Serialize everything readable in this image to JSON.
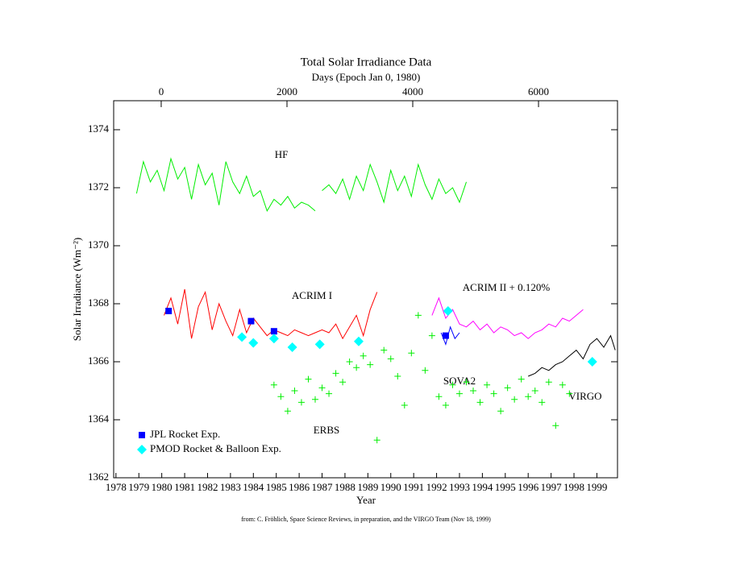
{
  "chart_data": {
    "type": "line",
    "title": "Total Solar Irradiance Data",
    "x2_label": "Days (Epoch Jan 0, 1980)",
    "x_label": "Year",
    "y_label": "Solar Irradiance (Wm⁻²)",
    "footnote": "from: C. Fröhlich, Space Science Reviews, in preparation, and the VIRGO Team (Nov 18, 1999)",
    "xlim": [
      1977.9,
      1999.9
    ],
    "xticks": [
      1978,
      1979,
      1980,
      1981,
      1982,
      1983,
      1984,
      1985,
      1986,
      1987,
      1988,
      1989,
      1990,
      1991,
      1992,
      1993,
      1994,
      1995,
      1996,
      1997,
      1998,
      1999
    ],
    "x2lim": [
      -756,
      7256
    ],
    "x2ticks": [
      0,
      2000,
      4000,
      6000
    ],
    "ylim": [
      1362,
      1375
    ],
    "yticks": [
      1362,
      1364,
      1366,
      1368,
      1370,
      1372,
      1374
    ],
    "series": [
      {
        "name": "HF",
        "color": "#00ee00",
        "style": "line",
        "x": [
          1978.9,
          1979.2,
          1979.5,
          1979.8,
          1980.1,
          1980.4,
          1980.7,
          1981.0,
          1981.3,
          1981.6,
          1981.9,
          1982.2,
          1982.5,
          1982.8,
          1983.1,
          1983.4,
          1983.7,
          1984.0,
          1984.3,
          1984.6,
          1984.9,
          1985.2,
          1985.5,
          1985.8,
          1986.1,
          1986.4,
          1986.7,
          1986.9,
          1987.0,
          1987.3,
          1987.6,
          1987.9,
          1988.2,
          1988.5,
          1988.8,
          1989.1,
          1989.4,
          1989.7,
          1990.0,
          1990.3,
          1990.6,
          1990.9,
          1991.2,
          1991.5,
          1991.8,
          1992.1,
          1992.4,
          1992.7,
          1993.0,
          1993.3
        ],
        "values": [
          1371.8,
          1372.9,
          1372.2,
          1372.6,
          1371.9,
          1373.0,
          1372.3,
          1372.7,
          1371.6,
          1372.8,
          1372.1,
          1372.5,
          1371.4,
          1372.9,
          1372.2,
          1371.8,
          1372.4,
          1371.7,
          1371.9,
          1371.2,
          1371.6,
          1371.4,
          1371.7,
          1371.3,
          1371.5,
          1371.4,
          1371.2,
          null,
          1371.9,
          1372.1,
          1371.8,
          1372.3,
          1371.6,
          1372.4,
          1371.9,
          1372.8,
          1372.2,
          1371.5,
          1372.6,
          1371.9,
          1372.4,
          1371.7,
          1372.8,
          1372.1,
          1371.6,
          1372.3,
          1371.8,
          1372.0,
          1371.5,
          1372.2
        ]
      },
      {
        "name": "ACRIM I",
        "color": "#ff0000",
        "style": "line",
        "x": [
          1980.1,
          1980.4,
          1980.7,
          1981.0,
          1981.3,
          1981.6,
          1981.9,
          1982.2,
          1982.5,
          1982.8,
          1983.1,
          1983.4,
          1983.7,
          1984.0,
          1984.3,
          1984.6,
          1984.9,
          1985.2,
          1985.5,
          1985.8,
          1986.1,
          1986.4,
          1986.7,
          1987.0,
          1987.3,
          1987.6,
          1987.9,
          1988.2,
          1988.5,
          1988.8,
          1989.1,
          1989.4
        ],
        "values": [
          1367.6,
          1368.2,
          1367.3,
          1368.5,
          1366.8,
          1367.9,
          1368.4,
          1367.1,
          1368.0,
          1367.4,
          1366.9,
          1367.8,
          1367.0,
          1367.5,
          1367.2,
          1366.9,
          1367.1,
          1367.0,
          1366.9,
          1367.1,
          1367.0,
          1366.9,
          1367.0,
          1367.1,
          1367.0,
          1367.3,
          1366.8,
          1367.2,
          1367.6,
          1366.9,
          1367.8,
          1368.4
        ]
      },
      {
        "name": "ACRIM II + 0.120%",
        "color": "#ff00ff",
        "style": "line",
        "x": [
          1991.8,
          1992.1,
          1992.4,
          1992.7,
          1993.0,
          1993.3,
          1993.6,
          1993.9,
          1994.2,
          1994.5,
          1994.8,
          1995.1,
          1995.4,
          1995.7,
          1996.0,
          1996.3,
          1996.6,
          1996.9,
          1997.2,
          1997.5,
          1997.8,
          1998.1,
          1998.4
        ],
        "values": [
          1367.6,
          1368.2,
          1367.5,
          1367.8,
          1367.3,
          1367.2,
          1367.4,
          1367.1,
          1367.3,
          1367.0,
          1367.2,
          1367.1,
          1366.9,
          1367.0,
          1366.8,
          1367.0,
          1367.1,
          1367.3,
          1367.2,
          1367.5,
          1367.4,
          1367.6,
          1367.8
        ]
      },
      {
        "name": "SOVA2",
        "color": "#0000ff",
        "style": "line",
        "x": [
          1992.2,
          1992.4,
          1992.6,
          1992.8,
          1993.0
        ],
        "values": [
          1367.0,
          1366.6,
          1367.2,
          1366.8,
          1367.0
        ]
      },
      {
        "name": "VIRGO",
        "color": "#000000",
        "style": "line",
        "x": [
          1996.0,
          1996.3,
          1996.6,
          1996.9,
          1997.2,
          1997.5,
          1997.8,
          1998.1,
          1998.4,
          1998.7,
          1999.0,
          1999.3,
          1999.6,
          1999.8
        ],
        "values": [
          1365.5,
          1365.6,
          1365.8,
          1365.7,
          1365.9,
          1366.0,
          1366.2,
          1366.4,
          1366.1,
          1366.6,
          1366.8,
          1366.5,
          1366.9,
          1366.4
        ]
      },
      {
        "name": "ERBS",
        "color": "#00ee00",
        "style": "cross",
        "x": [
          1984.9,
          1985.2,
          1985.5,
          1985.8,
          1986.1,
          1986.4,
          1986.7,
          1987.0,
          1987.3,
          1987.6,
          1987.9,
          1988.2,
          1988.5,
          1988.8,
          1989.1,
          1989.4,
          1989.7,
          1990.0,
          1990.3,
          1990.6,
          1990.9,
          1991.2,
          1991.5,
          1991.8,
          1992.1,
          1992.4,
          1992.7,
          1993.0,
          1993.3,
          1993.6,
          1993.9,
          1994.2,
          1994.5,
          1994.8,
          1995.1,
          1995.4,
          1995.7,
          1996.0,
          1996.3,
          1996.6,
          1996.9,
          1997.2,
          1997.5,
          1997.8
        ],
        "values": [
          1365.2,
          1364.8,
          1364.3,
          1365.0,
          1364.6,
          1365.4,
          1364.7,
          1365.1,
          1364.9,
          1365.6,
          1365.3,
          1366.0,
          1365.8,
          1366.2,
          1365.9,
          1363.3,
          1366.4,
          1366.1,
          1365.5,
          1364.5,
          1366.3,
          1367.6,
          1365.7,
          1366.9,
          1364.8,
          1364.5,
          1365.2,
          1364.9,
          1365.3,
          1365.0,
          1364.6,
          1365.2,
          1364.9,
          1364.3,
          1365.1,
          1364.7,
          1365.4,
          1364.8,
          1365.0,
          1364.6,
          1365.3,
          1363.8,
          1365.2,
          1364.9
        ]
      },
      {
        "name": "JPL Rocket Exp.",
        "color": "#0000ff",
        "style": "square",
        "legend": true,
        "x": [
          1980.3,
          1983.9,
          1984.9,
          1992.4
        ],
        "values": [
          1367.75,
          1367.4,
          1367.05,
          1366.9
        ]
      },
      {
        "name": "PMOD Rocket & Balloon Exp.",
        "color": "#00ffff",
        "style": "diamond",
        "legend": true,
        "x": [
          1983.5,
          1984.0,
          1984.9,
          1985.7,
          1986.9,
          1988.6,
          1992.5,
          1998.8
        ],
        "values": [
          1366.85,
          1366.65,
          1366.8,
          1366.5,
          1366.6,
          1366.7,
          1367.75,
          1366.0
        ]
      }
    ]
  }
}
